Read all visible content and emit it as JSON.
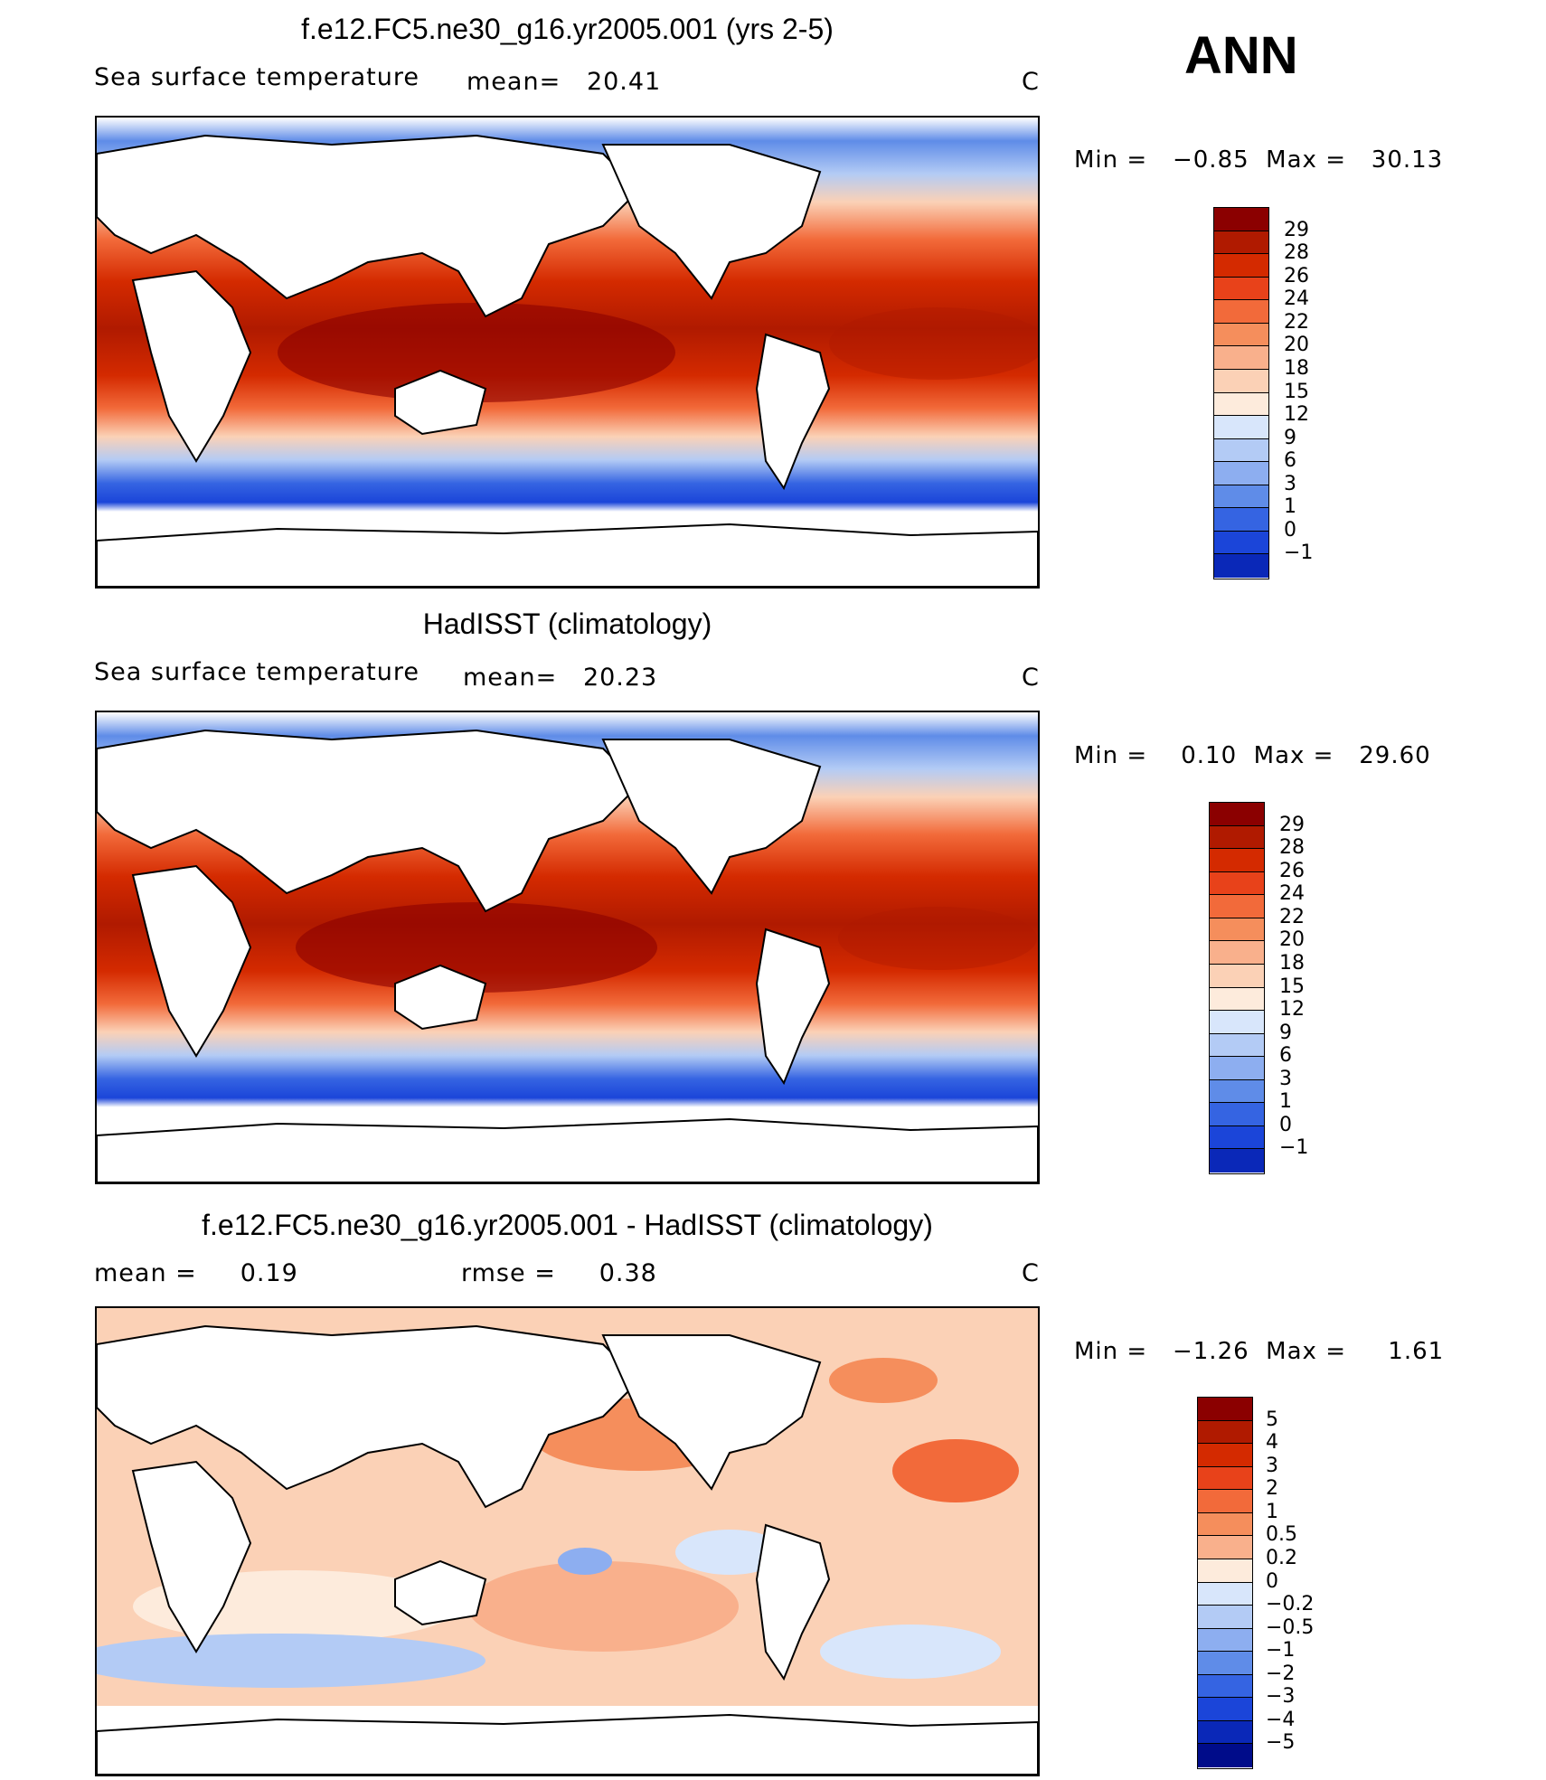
{
  "season": "ANN",
  "panels": [
    {
      "title": "f.e12.FC5.ne30_g16.yr2005.001 (yrs 2-5)",
      "left_label": "Sea surface temperature",
      "mean_text": "mean=   20.41",
      "units": "C",
      "minmax": "Min =   −0.85  Max =   30.13"
    },
    {
      "title": "HadISST (climatology)",
      "left_label": "Sea surface temperature",
      "mean_text": "mean=   20.23",
      "units": "C",
      "minmax": "Min =    0.10  Max =   29.60"
    },
    {
      "title": "f.e12.FC5.ne30_g16.yr2005.001 - HadISST (climatology)",
      "left_label": "mean =     0.19",
      "mean_text": "rmse =     0.38",
      "units": "C",
      "minmax": "Min =   −1.26  Max =     1.61"
    }
  ],
  "colorbars": {
    "sst": {
      "labels": [
        "29",
        "28",
        "26",
        "24",
        "22",
        "20",
        "18",
        "15",
        "12",
        "9",
        "6",
        "3",
        "1",
        "0",
        "−1"
      ],
      "colors": [
        "#8b0000",
        "#b01a00",
        "#d42a00",
        "#e8421a",
        "#f26a3a",
        "#f58e5c",
        "#f9b08c",
        "#fbd1b6",
        "#fdebdc",
        "#d8e6fb",
        "#b3cbf5",
        "#8daef0",
        "#5f8ce8",
        "#3564e2",
        "#1b45d9",
        "#0a28b8"
      ]
    },
    "diff": {
      "labels": [
        "5",
        "4",
        "3",
        "2",
        "1",
        "0.5",
        "0.2",
        "0",
        "−0.2",
        "−0.5",
        "−1",
        "−2",
        "−3",
        "−4",
        "−5"
      ],
      "colors": [
        "#8b0000",
        "#b01a00",
        "#d42a00",
        "#e8421a",
        "#f26a3a",
        "#f58e5c",
        "#f9b08c",
        "#fdebdc",
        "#d8e6fb",
        "#b3cbf5",
        "#8daef0",
        "#5f8ce8",
        "#3564e2",
        "#1b45d9",
        "#0a28b8",
        "#000c8a"
      ]
    }
  }
}
